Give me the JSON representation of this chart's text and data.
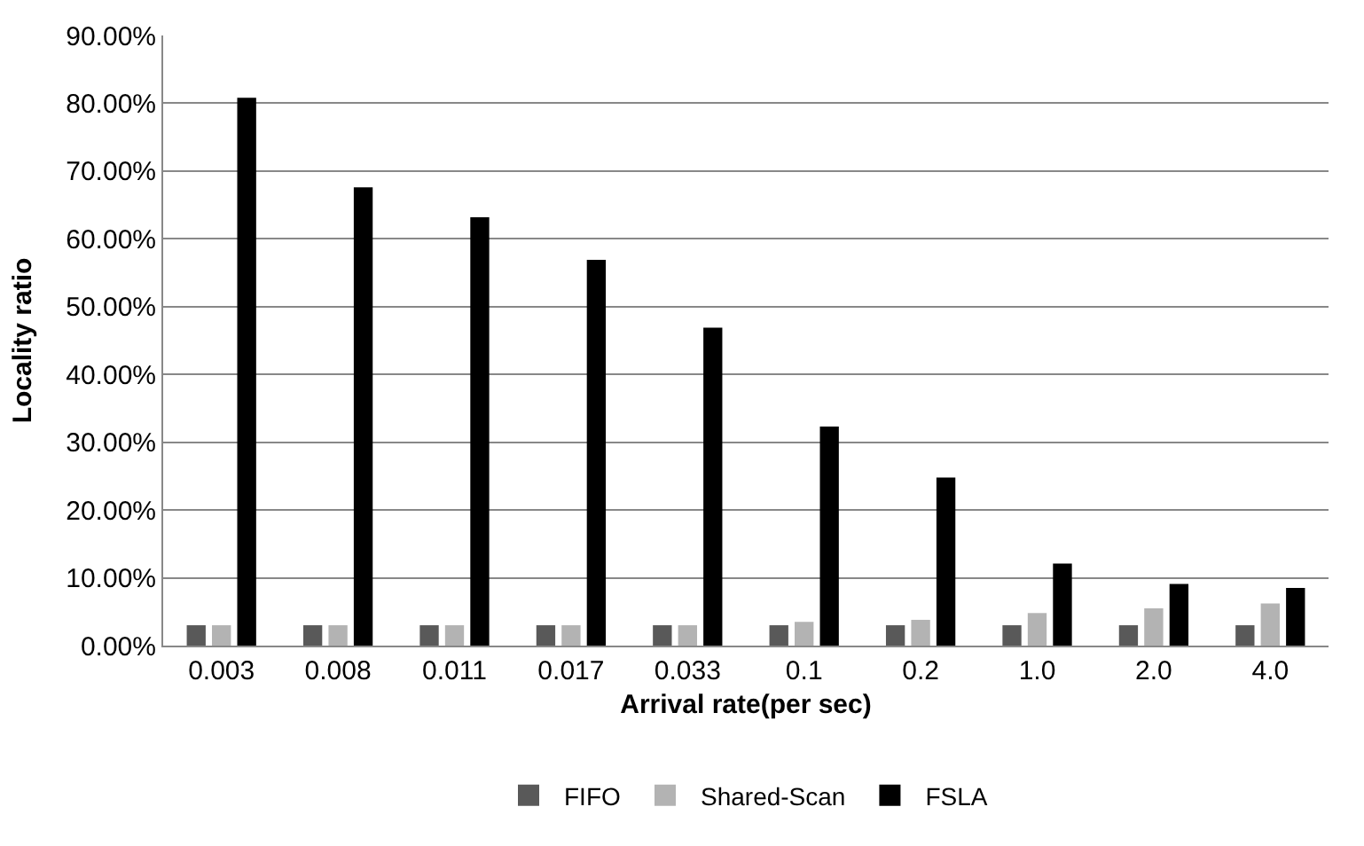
{
  "chart_data": {
    "type": "bar",
    "xlabel": "Arrival rate(per sec)",
    "ylabel": "Locality ratio",
    "categories": [
      "0.003",
      "0.008",
      "0.011",
      "0.017",
      "0.033",
      "0.1",
      "0.2",
      "1.0",
      "2.0",
      "4.0"
    ],
    "series": [
      {
        "name": "FIFO",
        "color": "#595959",
        "values": [
          3.0,
          3.0,
          3.0,
          3.0,
          3.0,
          3.0,
          3.0,
          3.0,
          3.0,
          3.0
        ]
      },
      {
        "name": "Shared-Scan",
        "color": "#b3b3b3",
        "values": [
          3.0,
          3.0,
          3.0,
          3.0,
          3.0,
          3.5,
          3.8,
          4.8,
          5.5,
          6.2
        ]
      },
      {
        "name": "FSLA",
        "color": "#000000",
        "values": [
          80.8,
          67.6,
          63.2,
          56.9,
          46.9,
          32.3,
          24.8,
          12.1,
          9.1,
          8.5
        ]
      }
    ],
    "ylim": [
      0,
      90
    ],
    "yticks": [
      {
        "value": 0,
        "label": "0.00%"
      },
      {
        "value": 10,
        "label": "10.00%"
      },
      {
        "value": 20,
        "label": "20.00%"
      },
      {
        "value": 30,
        "label": "30.00%"
      },
      {
        "value": 40,
        "label": "40.00%"
      },
      {
        "value": 50,
        "label": "50.00%"
      },
      {
        "value": 60,
        "label": "60.00%"
      },
      {
        "value": 70,
        "label": "70.00%"
      },
      {
        "value": 80,
        "label": "80.00%"
      },
      {
        "value": 90,
        "label": "90.00%"
      }
    ],
    "grid": "y",
    "legend": "bottom"
  }
}
